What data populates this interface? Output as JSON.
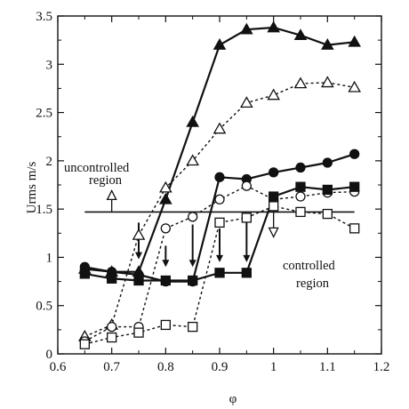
{
  "chart_data": {
    "type": "line",
    "title": "",
    "xlabel": "φ",
    "ylabel": "Urms m/s",
    "xlim": [
      0.6,
      1.2
    ],
    "ylim": [
      0,
      3.5
    ],
    "xticks": [
      0.6,
      0.7,
      0.8,
      0.9,
      1,
      1.1,
      1.2
    ],
    "xtick_labels": [
      "0.6",
      "0.7",
      "0.8",
      "0.9",
      "1",
      "1.1",
      "1.2"
    ],
    "yticks": [
      0,
      0.5,
      1,
      1.5,
      2,
      2.5,
      3,
      3.5
    ],
    "ytick_labels": [
      "0",
      "0.5",
      "1",
      "1.5",
      "2",
      "2.5",
      "3",
      "3.5"
    ],
    "grid": false,
    "series": [
      {
        "marker": "filled-triangle",
        "line": "solid",
        "x": [
          0.65,
          0.7,
          0.75,
          0.8,
          0.85,
          0.9,
          0.95,
          1.0,
          1.05,
          1.1,
          1.15
        ],
        "y": [
          0.88,
          0.85,
          0.85,
          1.6,
          2.4,
          3.2,
          3.36,
          3.38,
          3.3,
          3.2,
          3.23
        ]
      },
      {
        "marker": "open-triangle",
        "line": "dashed",
        "x": [
          0.65,
          0.7,
          0.75,
          0.8,
          0.85,
          0.9,
          0.95,
          1.0,
          1.05,
          1.1,
          1.15
        ],
        "y": [
          0.18,
          0.3,
          1.23,
          1.72,
          2.0,
          2.33,
          2.6,
          2.68,
          2.8,
          2.81,
          2.76
        ]
      },
      {
        "marker": "filled-circle",
        "line": "solid",
        "x": [
          0.65,
          0.7,
          0.75,
          0.8,
          0.85,
          0.9,
          0.95,
          1.0,
          1.05,
          1.1,
          1.15
        ],
        "y": [
          0.9,
          0.85,
          0.82,
          0.75,
          0.75,
          1.83,
          1.81,
          1.88,
          1.93,
          1.98,
          2.07
        ]
      },
      {
        "marker": "open-circle",
        "line": "dashed",
        "x": [
          0.65,
          0.7,
          0.75,
          0.8,
          0.85,
          0.9,
          0.95,
          1.0,
          1.05,
          1.1,
          1.15
        ],
        "y": [
          0.13,
          0.28,
          0.28,
          1.3,
          1.42,
          1.6,
          1.74,
          1.6,
          1.63,
          1.67,
          1.68
        ]
      },
      {
        "marker": "filled-square",
        "line": "solid",
        "x": [
          0.65,
          0.7,
          0.75,
          0.8,
          0.85,
          0.9,
          0.95,
          1.0,
          1.05,
          1.1,
          1.15
        ],
        "y": [
          0.83,
          0.78,
          0.76,
          0.76,
          0.76,
          0.84,
          0.84,
          1.63,
          1.73,
          1.7,
          1.73
        ]
      },
      {
        "marker": "open-square",
        "line": "dashed",
        "x": [
          0.65,
          0.7,
          0.75,
          0.8,
          0.85,
          0.9,
          0.95,
          1.0,
          1.05,
          1.1,
          1.15
        ],
        "y": [
          0.1,
          0.17,
          0.22,
          0.3,
          0.28,
          1.36,
          1.41,
          1.53,
          1.47,
          1.45,
          1.3
        ]
      }
    ],
    "threshold": {
      "y": 1.47,
      "x_range": [
        0.65,
        1.15
      ]
    },
    "annotations": [
      {
        "text_lines": [
          "uncontrolled",
          "region"
        ],
        "arrow": "up"
      },
      {
        "text_lines": [
          "controlled",
          "region"
        ],
        "arrow": "down"
      }
    ],
    "drop_arrows": [
      {
        "x": 0.75,
        "y_from": 1.36,
        "y_to": 0.98
      },
      {
        "x": 0.8,
        "y_from": 1.12,
        "y_to": 0.9
      },
      {
        "x": 0.85,
        "y_from": 1.34,
        "y_to": 0.9
      },
      {
        "x": 0.9,
        "y_from": 1.3,
        "y_to": 0.95
      },
      {
        "x": 0.95,
        "y_from": 1.42,
        "y_to": 0.95
      }
    ]
  }
}
